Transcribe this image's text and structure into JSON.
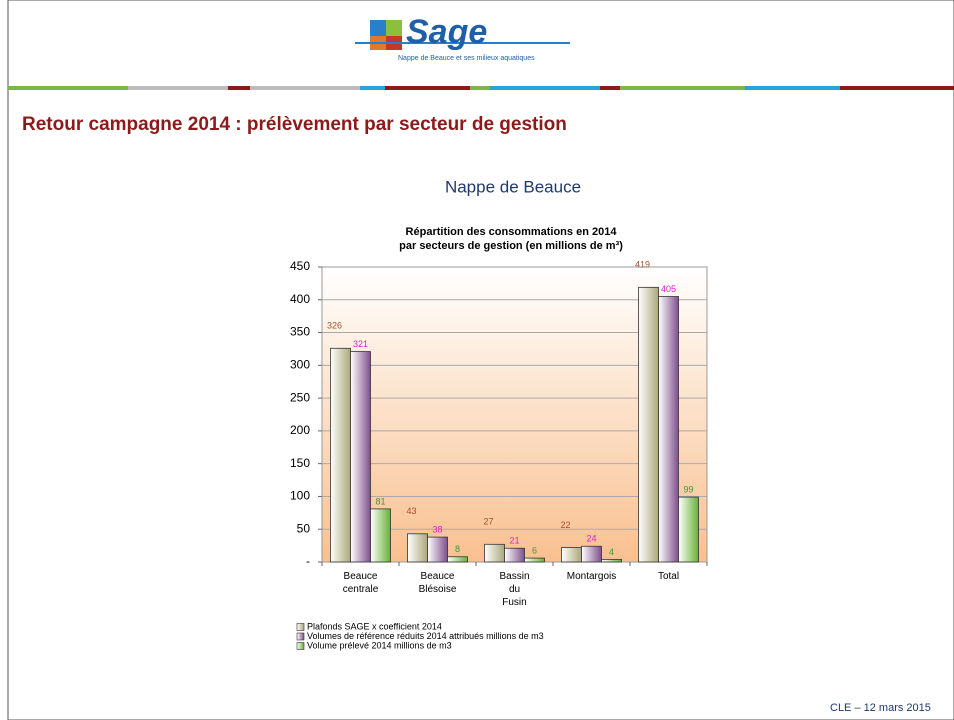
{
  "slide": {
    "logo": "Sage",
    "tagline": "Nappe de Beauce et ses milieux aquatiques",
    "title": "Retour campagne 2014 : prélèvement par secteur de gestion",
    "heading": "Nappe de Beauce",
    "footer": "CLE – 12 mars 2015"
  },
  "chart_data": {
    "type": "bar",
    "title": [
      "Répartition des consommations en 2014",
      "par secteurs de gestion (en millions de m³)"
    ],
    "categories": [
      "Beauce centrale",
      "Beauce Blésoise",
      "Bassin du Fusin",
      "Montargois",
      "Total"
    ],
    "series": [
      {
        "name": "Plafonds SAGE x coefficient 2014",
        "color": "#aba77a",
        "label_color": "#a0522d",
        "values": [
          326,
          43,
          27,
          22,
          419
        ]
      },
      {
        "name": "Volumes de référence réduits 2014 attribués millions de m3",
        "color": "#7d4f8c",
        "label_color": "#e020d0",
        "values": [
          321,
          38,
          21,
          24,
          405
        ]
      },
      {
        "name": "Volume prélevé 2014 millions de m3",
        "color": "#66b033",
        "label_color": "#3a9a3a",
        "values": [
          81,
          8,
          6,
          4,
          99
        ]
      }
    ],
    "ylim": [
      0,
      450
    ],
    "yticks": [
      {
        "value": 0,
        "label": "-"
      },
      50,
      100,
      150,
      200,
      250,
      300,
      350,
      400,
      450
    ],
    "grid": true,
    "legend": "bottom-left"
  }
}
